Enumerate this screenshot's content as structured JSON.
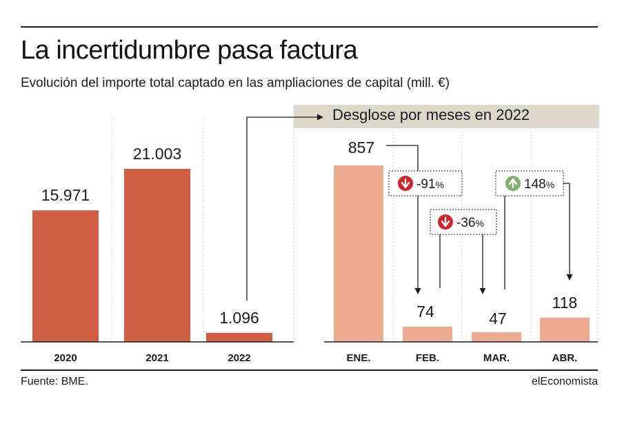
{
  "title": "La incertidumbre pasa factura",
  "subtitle": "Evolución del importe total captado en las ampliaciones de capital (mill. €)",
  "banner": "Desglose por meses en 2022",
  "source": "Fuente: BME.",
  "brand": "elEconomista",
  "colors": {
    "annual_bar": "#d05e42",
    "monthly_bar": "#eba98f",
    "grid": "#c8c8c8",
    "banner_bg": "#dcd9cc",
    "down_badge": "#d6202a",
    "up_badge": "#7db36a"
  },
  "chart_data": [
    {
      "type": "bar",
      "categories": [
        "2020",
        "2021",
        "2022"
      ],
      "values": [
        15971,
        21003,
        1096
      ],
      "value_labels": [
        "15.971",
        "21.003",
        "1.096"
      ],
      "title": "",
      "xlabel": "",
      "ylabel": "",
      "ylim": [
        0,
        21003
      ],
      "grid": true
    },
    {
      "type": "bar",
      "categories": [
        "ENE.",
        "FEB.",
        "MAR.",
        "ABR."
      ],
      "values": [
        857,
        74,
        47,
        118
      ],
      "value_labels": [
        "857",
        "74",
        "47",
        "118"
      ],
      "title": "Desglose por meses en 2022",
      "xlabel": "",
      "ylabel": "",
      "ylim": [
        0,
        857
      ],
      "grid": true,
      "changes": [
        {
          "from": "ENE.",
          "to": "FEB.",
          "label": "-91",
          "unit": "%",
          "direction": "down"
        },
        {
          "from": "FEB.",
          "to": "MAR.",
          "label": "-36",
          "unit": "%",
          "direction": "down"
        },
        {
          "from": "MAR.",
          "to": "ABR.",
          "label": "148",
          "unit": "%",
          "direction": "up"
        }
      ]
    }
  ]
}
